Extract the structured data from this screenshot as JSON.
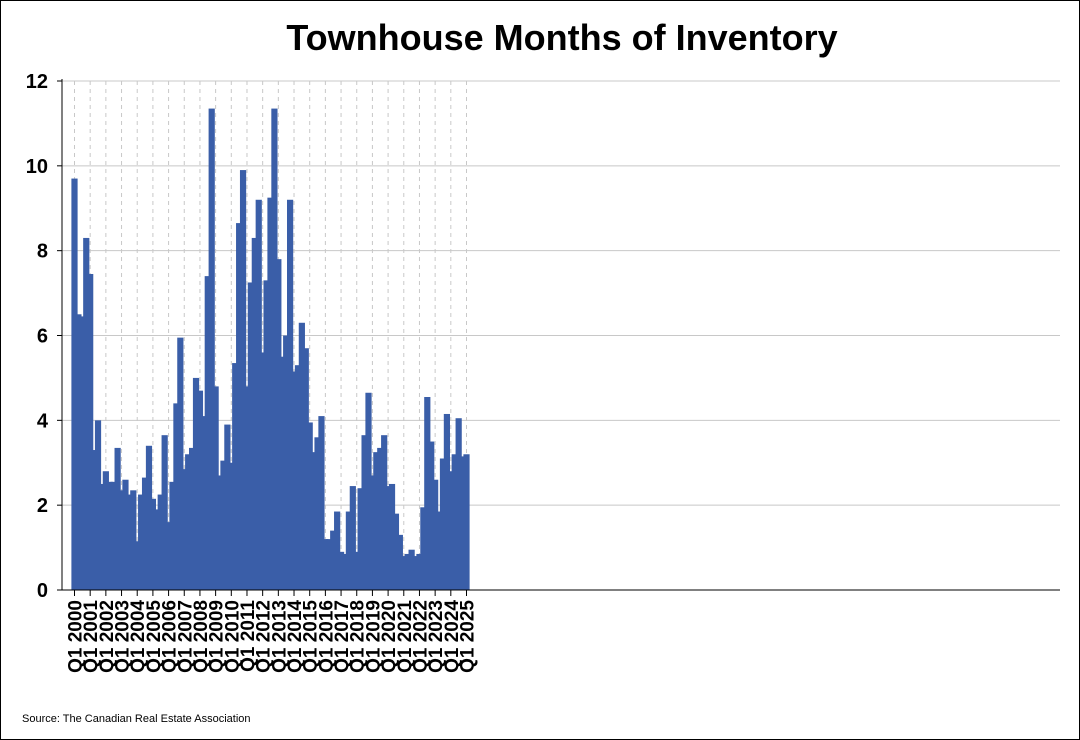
{
  "chart_data": {
    "type": "bar",
    "title": "Townhouse Months of Inventory",
    "xlabel": "",
    "ylabel": "",
    "ylim": [
      0,
      12
    ],
    "yticks": [
      0,
      2,
      4,
      6,
      8,
      10,
      12
    ],
    "grid": true,
    "bar_color": "#3a5ea8",
    "xtick_labels": [
      "Q1 2000",
      "Q1 2001",
      "Q1 2002",
      "Q1 2003",
      "Q1 2004",
      "Q1 2005",
      "Q1 2006",
      "Q1 2007",
      "Q1 2008",
      "Q1 2009",
      "Q1 2010",
      "Q1 2011",
      "Q1 2012",
      "Q1 2013",
      "Q1 2014",
      "Q1 2015",
      "Q1 2016",
      "Q1 2017",
      "Q1 2018",
      "Q1 2019",
      "Q1 2020",
      "Q1 2021",
      "Q1 2022",
      "Q1 2023",
      "Q1 2024",
      "Q1 2025"
    ],
    "series": [
      {
        "name": "Townhouse Months of Inventory",
        "values": [
          9.7,
          6.5,
          6.45,
          8.3,
          7.45,
          3.3,
          4.0,
          2.5,
          2.8,
          2.55,
          2.55,
          3.35,
          2.35,
          2.6,
          2.25,
          2.35,
          1.15,
          2.25,
          2.65,
          3.4,
          2.15,
          1.9,
          2.25,
          3.65,
          1.6,
          2.55,
          4.4,
          5.95,
          2.85,
          3.2,
          3.35,
          5.0,
          4.7,
          4.1,
          7.4,
          11.35,
          4.8,
          2.7,
          3.05,
          3.9,
          3.0,
          5.35,
          8.65,
          9.9,
          4.8,
          7.25,
          8.3,
          9.2,
          5.6,
          7.3,
          9.25,
          11.35,
          7.8,
          5.5,
          6.0,
          9.2,
          5.15,
          5.3,
          6.3,
          5.7,
          3.95,
          3.25,
          3.6,
          4.1,
          1.2,
          1.2,
          1.4,
          1.85,
          0.9,
          0.85,
          1.85,
          2.45,
          0.9,
          2.4,
          3.65,
          4.65,
          2.7,
          3.25,
          3.35,
          3.65,
          2.45,
          2.5,
          1.8,
          1.3,
          0.8,
          0.85,
          0.95,
          0.8,
          0.85,
          1.95,
          4.55,
          3.5,
          2.6,
          1.85,
          3.1,
          4.15,
          2.8,
          3.2,
          4.05,
          3.15,
          3.2
        ]
      }
    ]
  },
  "footer": {
    "source": "Source: The Canadian Real Estate Association"
  }
}
